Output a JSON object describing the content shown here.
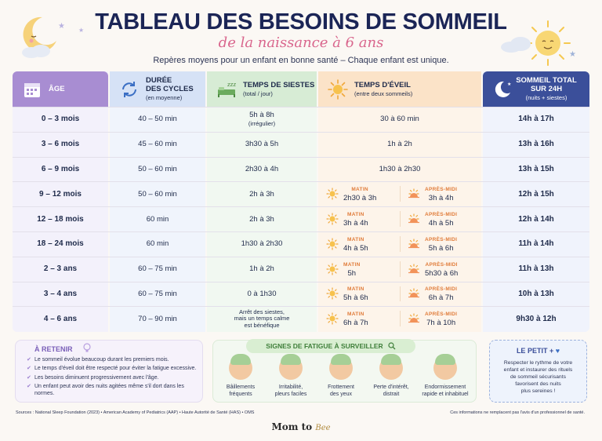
{
  "header": {
    "title": "TABLEAU DES BESOINS DE SOMMEIL",
    "subtitle": "de la naissance à 6 ans",
    "tagline": "Repères moyens pour un enfant en bonne santé – Chaque enfant est unique."
  },
  "columns": {
    "age": {
      "label": "ÂGE",
      "icon": "calendar-icon"
    },
    "cycles": {
      "label": "DURÉE",
      "label2": "DES CYCLES",
      "sub": "(en moyenne)",
      "icon": "cycle-arrows-icon"
    },
    "siestes": {
      "label": "TEMPS DE SIESTES",
      "sub": "(total / jour)",
      "icon": "bed-icon"
    },
    "eveil": {
      "label": "TEMPS D'ÉVEIL",
      "sub": "(entre deux sommeils)",
      "icon": "sun-icon"
    },
    "total": {
      "label": "SOMMEIL TOTAL",
      "label2": "SUR 24H",
      "sub": "(nuits + siestes)",
      "icon": "moon-icon"
    }
  },
  "labels": {
    "matin": "MATIN",
    "apres_midi": "APRÈS-MIDI"
  },
  "rows": [
    {
      "age": "0 – 3 mois",
      "cycles": "40 – 50 min",
      "siestes": "5h à 8h",
      "siestes_note": "(irrégulier)",
      "eveil": "30 à 60 min",
      "total": "14h à 17h"
    },
    {
      "age": "3 – 6 mois",
      "cycles": "45 – 60 min",
      "siestes": "3h30 à 5h",
      "eveil": "1h à 2h",
      "total": "13h à 16h"
    },
    {
      "age": "6 – 9 mois",
      "cycles": "50 – 60 min",
      "siestes": "2h30 à 4h",
      "eveil": "1h30 à 2h30",
      "total": "13h à 15h"
    },
    {
      "age": "9 – 12 mois",
      "cycles": "50 – 60 min",
      "siestes": "2h à 3h",
      "matin": "2h30 à 3h",
      "aprem": "3h à 4h",
      "total": "12h à 15h"
    },
    {
      "age": "12 – 18 mois",
      "cycles": "60 min",
      "siestes": "2h à 3h",
      "matin": "3h à 4h",
      "aprem": "4h à 5h",
      "total": "12h à 14h"
    },
    {
      "age": "18 – 24 mois",
      "cycles": "60 min",
      "siestes": "1h30 à 2h30",
      "matin": "4h à 5h",
      "aprem": "5h à 6h",
      "total": "11h à 14h"
    },
    {
      "age": "2 – 3 ans",
      "cycles": "60 – 75 min",
      "siestes": "1h à 2h",
      "matin": "5h",
      "aprem": "5h30 à 6h",
      "total": "11h à 13h"
    },
    {
      "age": "3 – 4 ans",
      "cycles": "60 – 75 min",
      "siestes": "0 à 1h30",
      "matin": "5h à 6h",
      "aprem": "6h à 7h",
      "total": "10h à 13h"
    },
    {
      "age": "4 – 6 ans",
      "cycles": "70 – 90 min",
      "siestes": "Arrêt des siestes,",
      "siestes2": "mais un temps calme",
      "siestes3": "est bénéfique",
      "matin": "6h à 7h",
      "aprem": "7h à 10h",
      "total": "9h30 à 12h"
    }
  ],
  "retenir": {
    "title": "À RETENIR",
    "items": [
      "Le sommeil évolue beaucoup durant les premiers mois.",
      "Le temps d'éveil doit être respecté pour éviter la fatigue excessive.",
      "Les besoins diminuent progressivement avec l'âge.",
      "Un enfant peut avoir des nuits agitées même s'il dort dans les normes."
    ]
  },
  "fatigue": {
    "title": "SIGNES DE FATIGUE À SURVEILLER",
    "items": [
      {
        "l1": "Bâillements",
        "l2": "fréquents"
      },
      {
        "l1": "Irritabilité,",
        "l2": "pleurs faciles"
      },
      {
        "l1": "Frottement",
        "l2": "des yeux"
      },
      {
        "l1": "Perte d'intérêt,",
        "l2": "distrait"
      },
      {
        "l1": "Endormissement",
        "l2": "rapide et inhabituel"
      }
    ]
  },
  "petit": {
    "title": "LE PETIT +",
    "l1": "Respecter le rythme de votre",
    "l2": "enfant et instaurer des rituels",
    "l3": "de sommeil sécurisants",
    "l4": "favorisent des nuits",
    "l5": "plus sereines !"
  },
  "footer": {
    "sources": "Sources : National Sleep Foundation (2023) • American Academy of Pediatrics (AAP) • Haute Autorité de Santé (HAS) • OMS",
    "disclaimer": "Ces informations ne remplacent pas l'avis d'un professionnel de santé.",
    "brand": "Mom to",
    "brand2": "Bee"
  },
  "colors": {
    "age_header": "#a88dd2",
    "total_header": "#3b4f9a",
    "accent_pink": "#d9668d",
    "title": "#1b2556"
  }
}
